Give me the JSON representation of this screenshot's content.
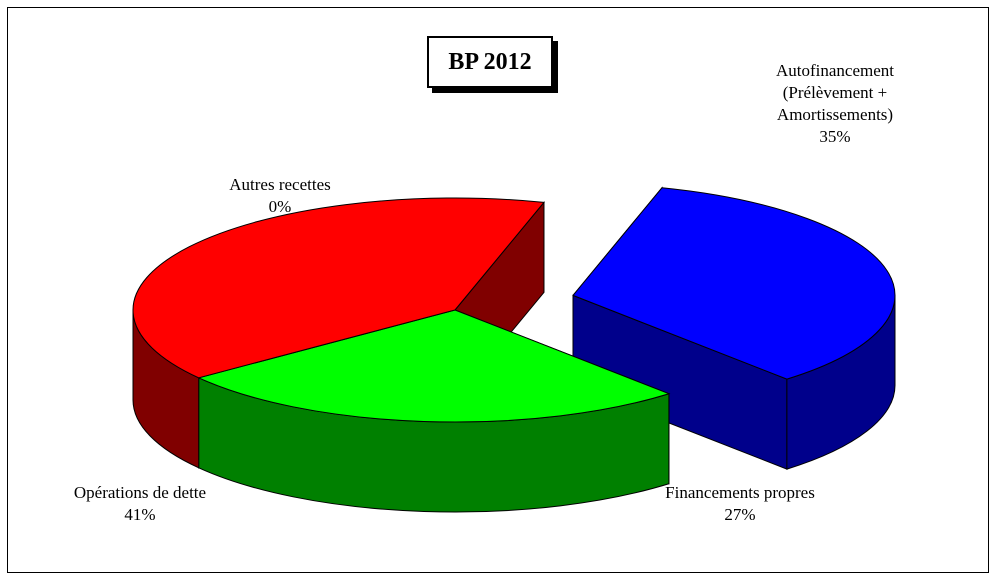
{
  "chart_data": {
    "type": "pie",
    "title": "BP 2012",
    "slices": [
      {
        "label_lines": [
          "Autofinancement",
          "(Prélèvement +",
          "Amortissements)"
        ],
        "percent_label": "35%",
        "value": 35,
        "color": "#0000ff",
        "side_color": "#00008b",
        "exploded": true
      },
      {
        "label_lines": [
          "Financements propres"
        ],
        "percent_label": "27%",
        "value": 27,
        "color": "#00ff00",
        "side_color": "#008000",
        "exploded": false
      },
      {
        "label_lines": [
          "Opérations de dette"
        ],
        "percent_label": "41%",
        "value": 41,
        "color": "#ff0000",
        "side_color": "#800000",
        "exploded": false
      },
      {
        "label_lines": [
          "Autres recettes"
        ],
        "percent_label": "0%",
        "value": 0,
        "color": "#ffff00",
        "side_color": "#808000",
        "exploded": false
      }
    ],
    "style": "3d-exploded-pie",
    "legend": "none"
  }
}
